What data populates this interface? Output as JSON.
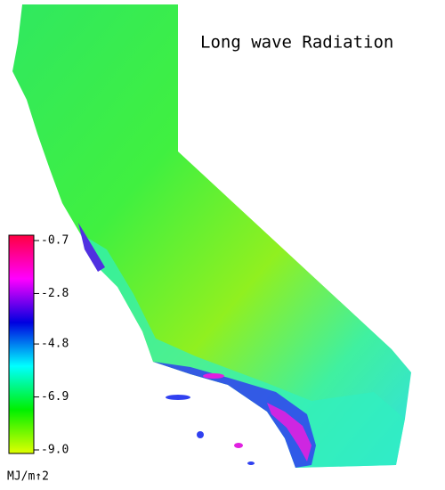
{
  "map": {
    "title": "Long wave Radiation",
    "colorbar": {
      "label": "MJ/m↑2",
      "lim": [
        -9.0,
        -0.7
      ],
      "ticks": [
        -0.7,
        -2.8,
        -4.8,
        {
          "value": -6.9,
          "label": "-6.9"
        },
        {
          "value": -9.0,
          "label": "-9.0"
        }
      ],
      "colors": [
        "#e0ff00",
        "#00f000",
        "#00ffff",
        "#0000e0",
        "#ff00ff",
        "#ff0040"
      ]
    }
  }
}
